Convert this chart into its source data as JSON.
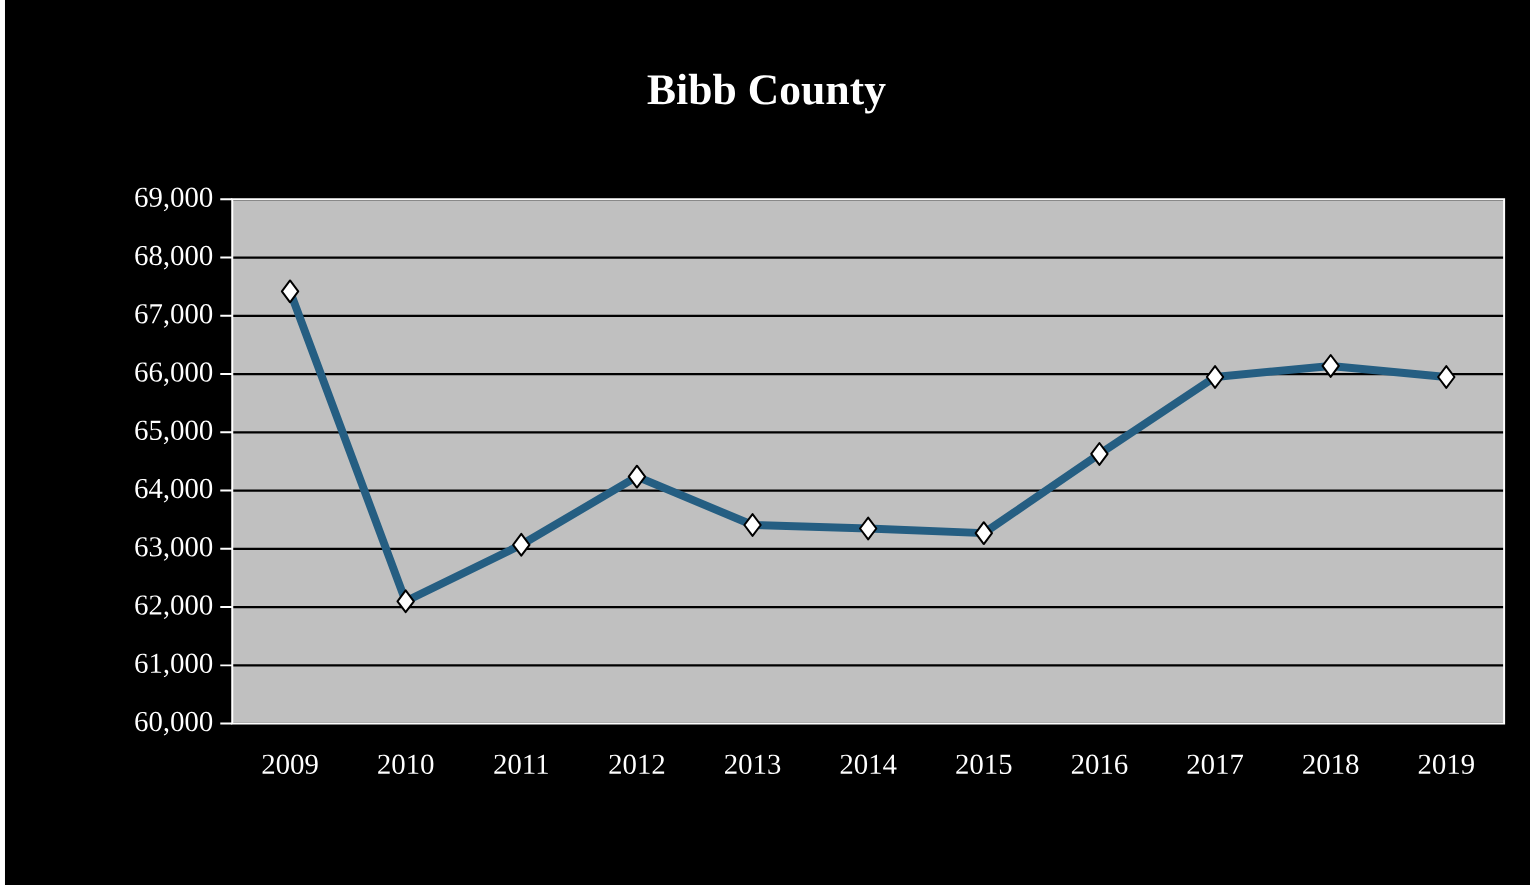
{
  "chart_data": {
    "type": "line",
    "title": "Bibb County",
    "categories": [
      "2009",
      "2010",
      "2011",
      "2012",
      "2013",
      "2014",
      "2015",
      "2016",
      "2017",
      "2018",
      "2019"
    ],
    "series": [
      {
        "color": "#255e82",
        "values": [
          67420,
          62100,
          63070,
          64240,
          63410,
          63350,
          63270,
          64630,
          65950,
          66140,
          65950
        ]
      }
    ],
    "ylim": [
      60000,
      69000
    ],
    "yticks": [
      {
        "value": 60000,
        "label": "60,000"
      },
      {
        "value": 61000,
        "label": "61,000"
      },
      {
        "value": 62000,
        "label": "62,000"
      },
      {
        "value": 63000,
        "label": "63,000"
      },
      {
        "value": 64000,
        "label": "64,000"
      },
      {
        "value": 65000,
        "label": "65,000"
      },
      {
        "value": 66000,
        "label": "66,000"
      },
      {
        "value": 67000,
        "label": "67,000"
      },
      {
        "value": 68000,
        "label": "68,000"
      },
      {
        "value": 69000,
        "label": "69,000"
      }
    ],
    "grid": "y",
    "marker": "diamond",
    "line_style": "solid"
  }
}
